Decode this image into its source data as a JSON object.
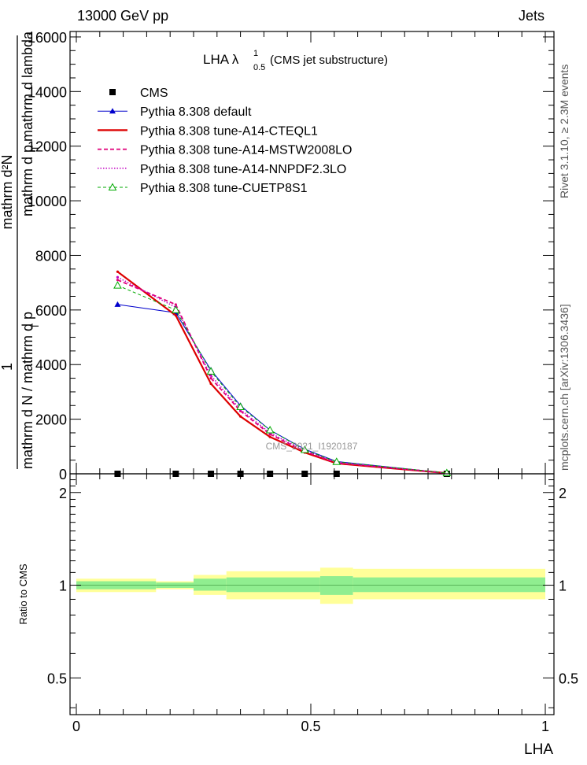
{
  "header": {
    "left": "13000 GeV pp",
    "right": "Jets"
  },
  "side_labels": {
    "rivet": "Rivet 3.1.10, ≥ 2.3M events",
    "mcplots": "mcplots.cern.ch [arXiv:1306.3436]"
  },
  "watermark": "CMS_2021_I1920187",
  "chart_data": [
    {
      "type": "line",
      "title": {
        "main": "LHA λ",
        "sup": "1",
        "sub": "0.5",
        "suffix": " (CMS jet substructure)"
      },
      "ylabel_lines": [
        "mathrm d²N",
        "mathrm d p_T mathrm d lambda",
        "1",
        "mathrm d N / mathrm d p_T"
      ],
      "ylabel": {
        "top_num": "mathrm d²N",
        "top_den": "mathrm d p",
        "top_den_sub": "T",
        "top_den_tail": " mathrm d lambda",
        "bot_num": "1",
        "bot_den": "mathrm d N / mathrm d p",
        "bot_den_sub": "T"
      },
      "xlim": [
        0,
        1
      ],
      "ylim": [
        0,
        16200
      ],
      "y_ticks": [
        0,
        2000,
        4000,
        6000,
        8000,
        10000,
        12000,
        14000,
        16000
      ],
      "y_tick_labels": [
        "0",
        "2000",
        "4000",
        "6000",
        "8000",
        "10000",
        "12000",
        "14000",
        "16000"
      ],
      "legend_position": "top-left",
      "series": [
        {
          "name": "CMS",
          "color": "#000000",
          "style": "marker-square",
          "x": [
            0.088,
            0.212,
            0.287,
            0.35,
            0.413,
            0.487,
            0.555,
            0.79
          ],
          "y": [
            0,
            0,
            0,
            0,
            0,
            0,
            0,
            0
          ]
        },
        {
          "name": "Pythia 8.308 default",
          "color": "#0000cc",
          "style": "solid-triangle",
          "x": [
            0.088,
            0.212,
            0.287,
            0.35,
            0.413,
            0.487,
            0.555,
            0.79
          ],
          "y": [
            6200,
            5900,
            3800,
            2500,
            1600,
            900,
            450,
            30
          ]
        },
        {
          "name": "Pythia 8.308 tune-A14-CTEQL1",
          "color": "#dd0000",
          "style": "thick",
          "x": [
            0.088,
            0.212,
            0.287,
            0.35,
            0.413,
            0.487,
            0.555,
            0.79
          ],
          "y": [
            7400,
            5800,
            3300,
            2100,
            1350,
            780,
            380,
            25
          ]
        },
        {
          "name": "Pythia 8.308 tune-A14-MSTW2008LO",
          "color": "#e0007a",
          "style": "dashed",
          "x": [
            0.088,
            0.212,
            0.287,
            0.35,
            0.413,
            0.487,
            0.555,
            0.79
          ],
          "y": [
            7100,
            6200,
            3500,
            2300,
            1450,
            820,
            400,
            28
          ]
        },
        {
          "name": "Pythia 8.308 tune-A14-NNPDF2.3LO",
          "color": "#c000c0",
          "style": "dotted",
          "x": [
            0.088,
            0.212,
            0.287,
            0.35,
            0.413,
            0.487,
            0.555,
            0.79
          ],
          "y": [
            7200,
            6100,
            3600,
            2350,
            1500,
            850,
            420,
            28
          ]
        },
        {
          "name": "Pythia 8.308 tune-CUETP8S1",
          "color": "#00aa00",
          "style": "dashed-open-triangle",
          "x": [
            0.088,
            0.212,
            0.287,
            0.35,
            0.413,
            0.487,
            0.555,
            0.79
          ],
          "y": [
            6900,
            6000,
            3750,
            2450,
            1600,
            880,
            440,
            30
          ]
        }
      ]
    },
    {
      "type": "area",
      "ylabel": "Ratio to CMS",
      "xlabel": "LHA",
      "xlim": [
        0,
        1
      ],
      "ylim": [
        0.38,
        2.3
      ],
      "log_y": true,
      "x_ticks": [
        0,
        0.5,
        1
      ],
      "x_tick_labels": [
        "0",
        "0.5",
        "1"
      ],
      "y_ticks": [
        0.5,
        1,
        2
      ],
      "y_tick_labels": [
        "0.5",
        "1",
        "2"
      ],
      "bins": [
        0,
        0.17,
        0.25,
        0.32,
        0.52,
        0.59,
        1.0
      ],
      "stat_band": {
        "color": "#90ee90",
        "lo": [
          0.97,
          0.98,
          0.96,
          0.95,
          0.93,
          0.95
        ],
        "hi": [
          1.03,
          1.02,
          1.05,
          1.06,
          1.07,
          1.06
        ]
      },
      "total_band": {
        "color": "#ffff99",
        "lo": [
          0.95,
          0.97,
          0.93,
          0.9,
          0.87,
          0.9
        ],
        "hi": [
          1.05,
          1.03,
          1.08,
          1.11,
          1.14,
          1.13
        ]
      }
    }
  ]
}
